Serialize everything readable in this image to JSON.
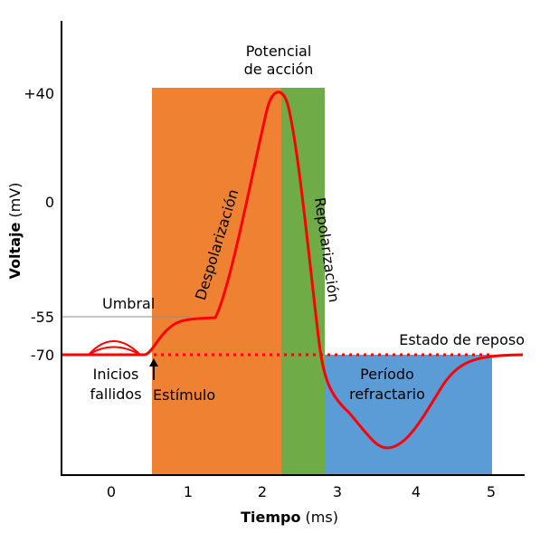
{
  "title": {
    "line1": "Potencial",
    "line2": "de acción"
  },
  "axes": {
    "y_title_bold": "Voltaje",
    "y_title_unit": " (mV)",
    "x_title_bold": "Tiempo",
    "x_title_unit": " (ms)",
    "y_ticks": [
      "+40",
      "0",
      "-55",
      "-70"
    ],
    "x_ticks": [
      "0",
      "1",
      "2",
      "3",
      "4",
      "5"
    ]
  },
  "labels": {
    "umbral": "Umbral",
    "estado_reposo": "Estado de reposo",
    "inicios_1": "Inicios",
    "inicios_2": "fallidos",
    "estimulo": "Estímulo",
    "despolarizacion": "Despolarización",
    "repolarizacion": "Repolarización",
    "periodo_1": "Período",
    "periodo_2": "refractario"
  },
  "colors": {
    "depolarization": "#ef8232",
    "repolarization": "#6fab47",
    "refractory": "#5b9bd6",
    "curve": "#ff0000"
  }
}
